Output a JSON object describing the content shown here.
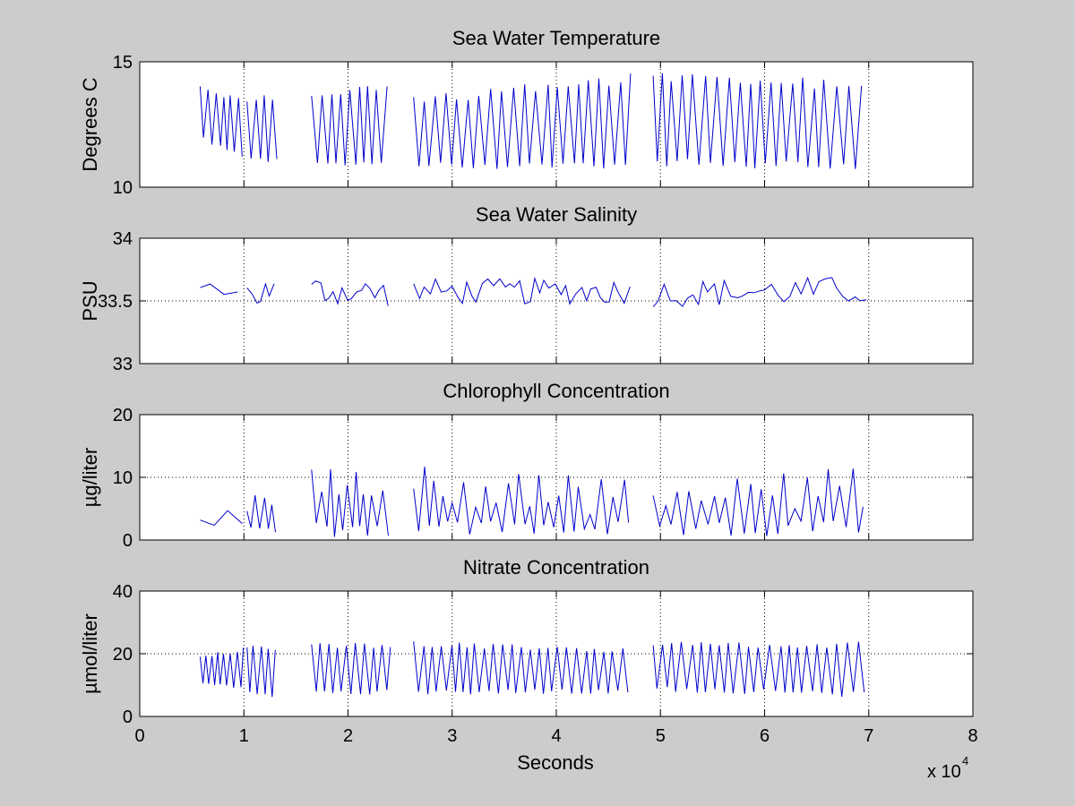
{
  "figure": {
    "background": "#cccccc",
    "axes_background": "#ffffff",
    "line_color": "#0000cc",
    "xlabel": "Seconds",
    "x_multiplier": "x 10",
    "x_multiplier_exp": "4",
    "x_ticks": [
      "0",
      "1",
      "2",
      "3",
      "4",
      "5",
      "6",
      "7",
      "8"
    ]
  },
  "chart_data": [
    {
      "type": "line",
      "title": "Sea Water Temperature",
      "ylabel": "Degrees C",
      "xlim": [
        0,
        80000
      ],
      "ylim": [
        10,
        15
      ],
      "yticks": [
        "10",
        "15"
      ],
      "yticks_values": [
        10,
        15
      ],
      "grid": "vertical",
      "pattern": "oscillating profiles",
      "segments": [
        {
          "x": [
            5800,
            10000
          ],
          "low": [
            11.9,
            11.0
          ],
          "high": [
            14.2,
            13.5
          ],
          "period": 350
        },
        {
          "x": [
            10300,
            13300
          ],
          "low": [
            10.9,
            10.9
          ],
          "high": [
            13.5,
            13.9
          ],
          "period": 420
        },
        {
          "x": [
            16500,
            24200
          ],
          "low": [
            10.7,
            10.8
          ],
          "high": [
            13.8,
            14.3
          ],
          "period": 480
        },
        {
          "x": [
            26300,
            47300
          ],
          "low": [
            10.7,
            10.7
          ],
          "high": [
            13.6,
            14.6
          ],
          "period": 500
        },
        {
          "x": [
            49300,
            69800
          ],
          "low": [
            10.8,
            10.6
          ],
          "high": [
            14.6,
            14.3
          ],
          "period": 520
        }
      ]
    },
    {
      "type": "line",
      "title": "Sea Water Salinity",
      "ylabel": "PSU",
      "xlim": [
        0,
        80000
      ],
      "ylim": [
        33,
        34
      ],
      "yticks": [
        "33",
        "33.5",
        "34"
      ],
      "yticks_values": [
        33,
        33.5,
        34
      ],
      "grid": "both",
      "pattern": "noisy",
      "segments": [
        {
          "x": [
            5800,
            10000
          ],
          "low": [
            33.55,
            33.55
          ],
          "high": [
            33.65,
            33.62
          ],
          "period": 1200
        },
        {
          "x": [
            10300,
            13300
          ],
          "low": [
            33.4,
            33.5
          ],
          "high": [
            33.68,
            33.68
          ],
          "period": 400
        },
        {
          "x": [
            16500,
            24200
          ],
          "low": [
            33.47,
            33.45
          ],
          "high": [
            33.7,
            33.67
          ],
          "period": 450
        },
        {
          "x": [
            26300,
            47300
          ],
          "low": [
            33.47,
            33.47
          ],
          "high": [
            33.68,
            33.68
          ],
          "period": 500
        },
        {
          "x": [
            49300,
            69800
          ],
          "low": [
            33.45,
            33.47
          ],
          "high": [
            33.67,
            33.7
          ],
          "period": 550
        }
      ]
    },
    {
      "type": "line",
      "title": "Chlorophyll Concentration",
      "ylabel": "µg/liter",
      "xlim": [
        0,
        80000
      ],
      "ylim": [
        0,
        20
      ],
      "yticks": [
        "0",
        "10",
        "20"
      ],
      "yticks_values": [
        0,
        10,
        20
      ],
      "grid": "both",
      "pattern": "spiky",
      "segments": [
        {
          "x": [
            5800,
            10000
          ],
          "low": [
            1.5,
            2.5
          ],
          "high": [
            3.5,
            5.5
          ],
          "period": 1500
        },
        {
          "x": [
            10300,
            13300
          ],
          "low": [
            0.5,
            0.5
          ],
          "high": [
            9.0,
            7.0
          ],
          "period": 400
        },
        {
          "x": [
            16500,
            24200
          ],
          "low": [
            0.5,
            0.5
          ],
          "high": [
            11.5,
            12.5
          ],
          "period": 450
        },
        {
          "x": [
            26300,
            47300
          ],
          "low": [
            0.5,
            0.5
          ],
          "high": [
            12.5,
            10.0
          ],
          "period": 500
        },
        {
          "x": [
            49300,
            69800
          ],
          "low": [
            0.3,
            0.5
          ],
          "high": [
            9.0,
            12.5
          ],
          "period": 550
        }
      ]
    },
    {
      "type": "line",
      "title": "Nitrate Concentration",
      "ylabel": "µmol/liter",
      "xlim": [
        0,
        80000
      ],
      "ylim": [
        0,
        40
      ],
      "yticks": [
        "0",
        "20",
        "40"
      ],
      "yticks_values": [
        0,
        20,
        40
      ],
      "grid": "both",
      "pattern": "oscillating profiles",
      "segments": [
        {
          "x": [
            5800,
            10000
          ],
          "low": [
            10.0,
            8.0
          ],
          "high": [
            20.0,
            22.0
          ],
          "period": 300
        },
        {
          "x": [
            10300,
            13300
          ],
          "low": [
            7.0,
            6.0
          ],
          "high": [
            23.0,
            22.0
          ],
          "period": 350
        },
        {
          "x": [
            16500,
            24200
          ],
          "low": [
            7.0,
            7.0
          ],
          "high": [
            24.0,
            23.0
          ],
          "period": 420
        },
        {
          "x": [
            26300,
            47300
          ],
          "low": [
            7.0,
            7.0
          ],
          "high": [
            24.0,
            22.0
          ],
          "period": 450
        },
        {
          "x": [
            49300,
            69800
          ],
          "low": [
            8.0,
            6.0
          ],
          "high": [
            24.0,
            24.0
          ],
          "period": 470
        }
      ]
    }
  ]
}
